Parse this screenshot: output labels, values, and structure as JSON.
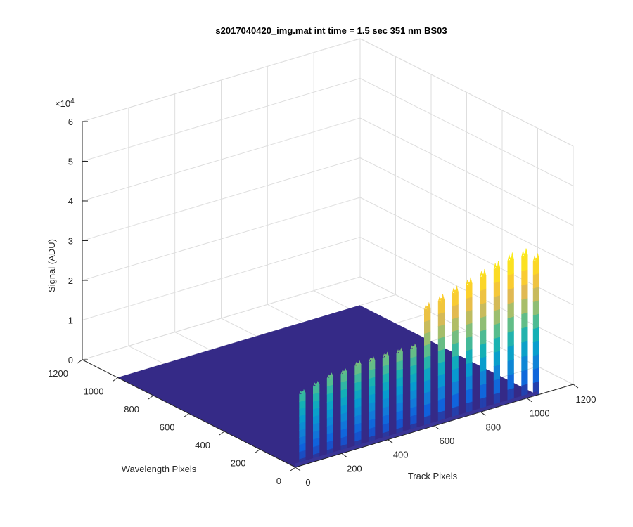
{
  "chart_data": {
    "type": "surface",
    "title": "s2017040420_img.mat int time = 1.5 sec  351 nm BS03",
    "xlabel": "Track Pixels",
    "ylabel": "Wavelength Pixels",
    "zlabel": "Signal (ADU)",
    "z_exponent_base": "×10",
    "z_exponent_power": "4",
    "xlim": [
      0,
      1200
    ],
    "ylim": [
      0,
      1200
    ],
    "zlim": [
      0,
      60000
    ],
    "x_ticks": [
      "0",
      "200",
      "400",
      "600",
      "800",
      "1000",
      "1200"
    ],
    "y_ticks": [
      "0",
      "200",
      "400",
      "600",
      "800",
      "1000",
      "1200"
    ],
    "z_ticks": [
      "0",
      "1",
      "2",
      "3",
      "4",
      "5",
      "6"
    ],
    "grid": true,
    "colormap": "parula",
    "baseline_color": "#352a87",
    "peaks_x": [
      30,
      90,
      150,
      210,
      270,
      330,
      390,
      450,
      510,
      570,
      630,
      690,
      750,
      810,
      870,
      930,
      990,
      1040
    ],
    "peaks_z": [
      18000,
      19000,
      20000,
      20000,
      21000,
      21000,
      21000,
      21000,
      21000,
      30000,
      31000,
      32000,
      33000,
      34000,
      35000,
      36000,
      36000,
      34000
    ]
  }
}
